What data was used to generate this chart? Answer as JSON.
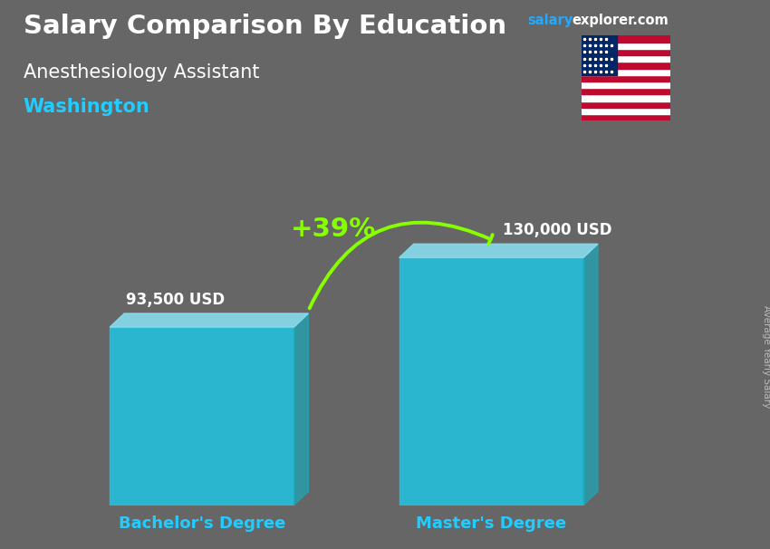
{
  "title_main": "Salary Comparison By Education",
  "title_salary": "salary",
  "title_explorer": "explorer.com",
  "subtitle": "Anesthesiology Assistant",
  "location": "Washington",
  "categories": [
    "Bachelor's Degree",
    "Master's Degree"
  ],
  "values": [
    93500,
    130000
  ],
  "value_labels": [
    "93,500 USD",
    "130,000 USD"
  ],
  "pct_change": "+39%",
  "bar_color_face": "#1EC8E8",
  "bar_color_top": "#88DDEE",
  "bar_color_side": "#1AAABB",
  "bg_color": "#666666",
  "title_color": "#FFFFFF",
  "subtitle_color": "#FFFFFF",
  "location_color": "#22CCFF",
  "label_color": "#FFFFFF",
  "category_color": "#22CCFF",
  "pct_color": "#88FF00",
  "arrow_color": "#88FF00",
  "salary_color": "#22AAFF",
  "explorer_color": "#FFFFFF",
  "rotated_label": "Average Yearly Salary",
  "rotated_label_color": "#BBBBBB",
  "ylim_max": 150000,
  "bar_width": 0.28,
  "positions": [
    0.28,
    0.72
  ]
}
